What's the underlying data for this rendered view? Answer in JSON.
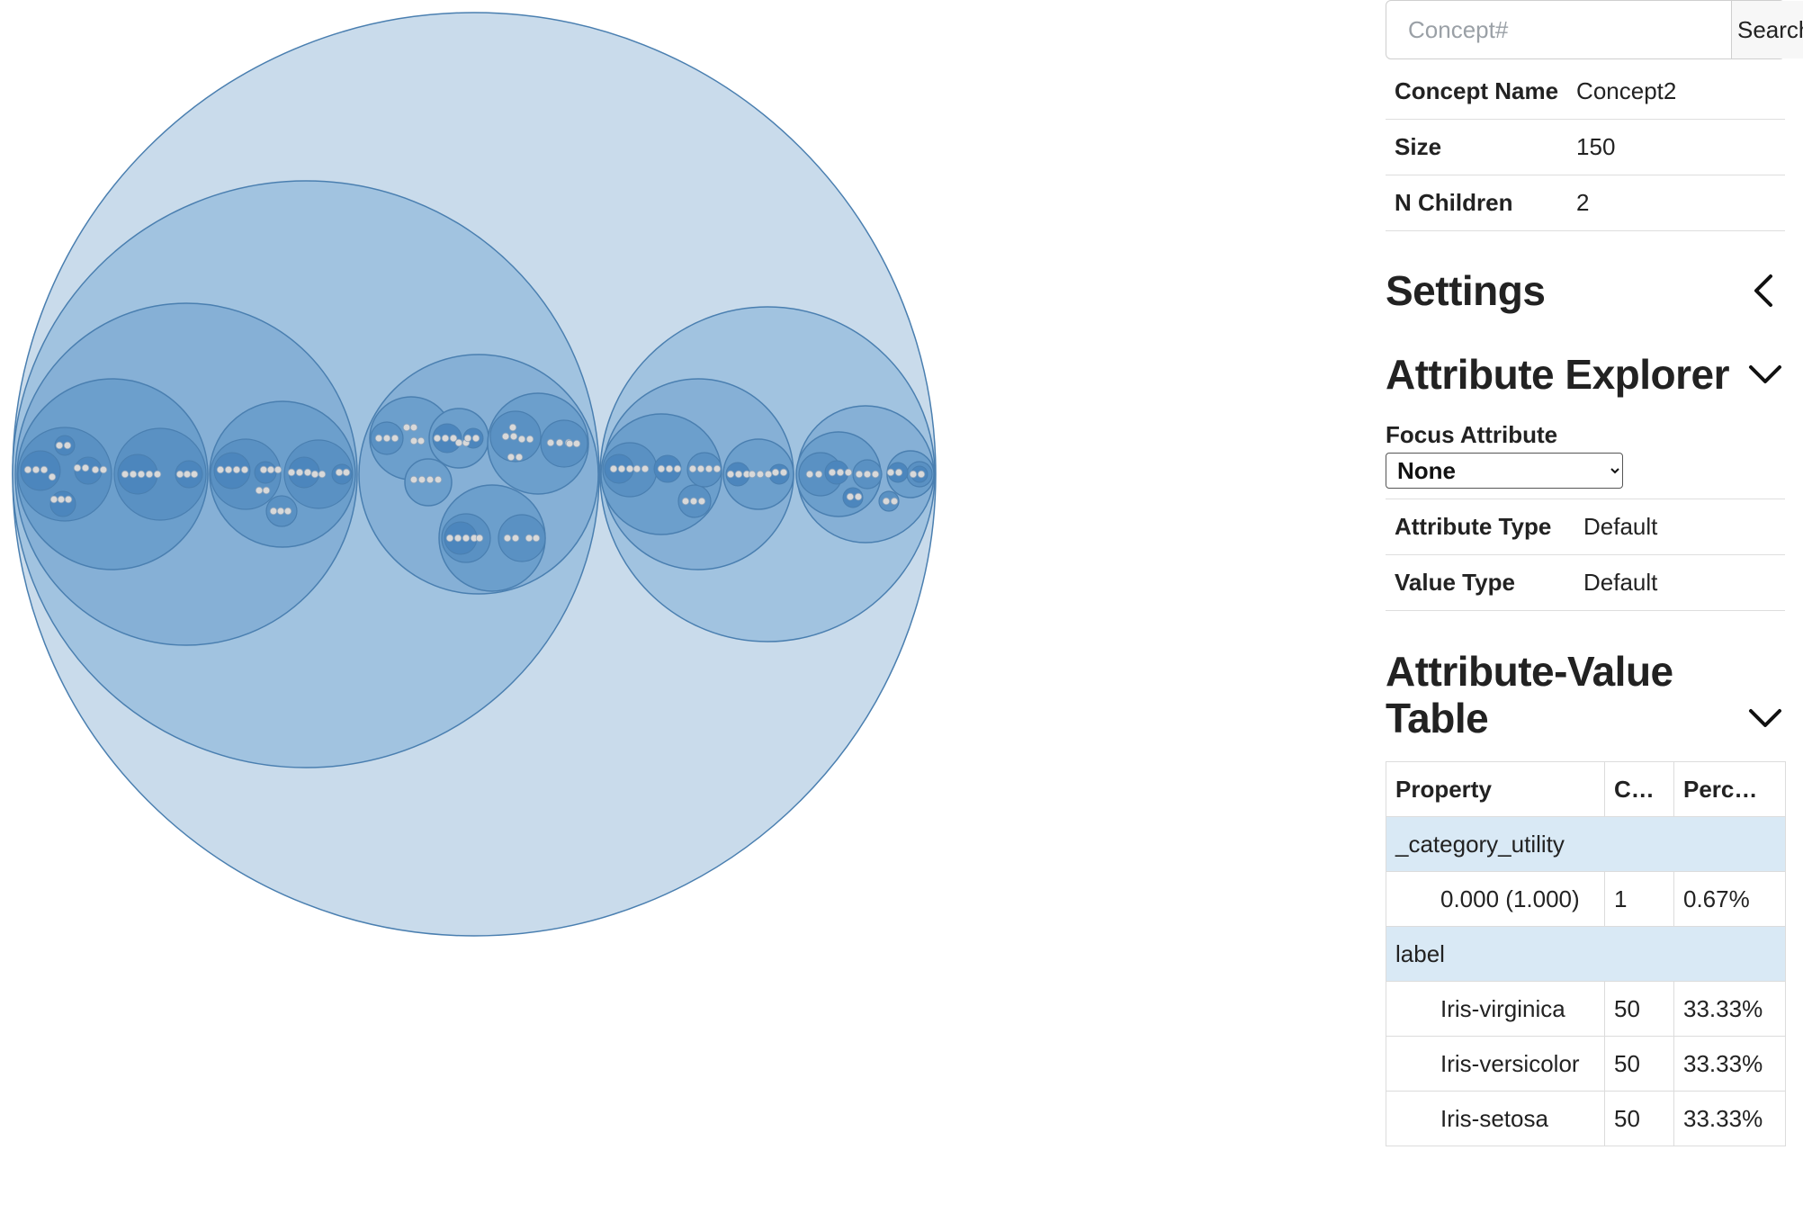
{
  "search": {
    "placeholder": "Concept#",
    "button_label": "Search"
  },
  "concept_info": {
    "rows": [
      {
        "label": "Concept Name",
        "value": "Concept2"
      },
      {
        "label": "Size",
        "value": "150"
      },
      {
        "label": "N Children",
        "value": "2"
      }
    ]
  },
  "settings": {
    "title": "Settings",
    "icon": "chevron-left-icon"
  },
  "attribute_explorer": {
    "title": "Attribute Explorer",
    "icon": "chevron-down-icon",
    "focus_label": "Focus Attribute",
    "focus_value": "None",
    "rows": [
      {
        "label": "Attribute Type",
        "value": "Default"
      },
      {
        "label": "Value Type",
        "value": "Default"
      }
    ]
  },
  "attribute_value_table": {
    "title_line1": "Attribute-Value",
    "title_line2": "Table",
    "icon": "chevron-down-icon",
    "headers": [
      "Property",
      "C…",
      "Perc…"
    ],
    "groups": [
      {
        "name": "_category_utility",
        "rows": [
          {
            "value": "0.000 (1.000)",
            "count": "1",
            "percent": "0.67%"
          }
        ]
      },
      {
        "name": "label",
        "rows": [
          {
            "value": "Iris-virginica",
            "count": "50",
            "percent": "33.33%"
          },
          {
            "value": "Iris-versicolor",
            "count": "50",
            "percent": "33.33%"
          },
          {
            "value": "Iris-setosa",
            "count": "50",
            "percent": "33.33%"
          }
        ]
      }
    ]
  },
  "visualization": {
    "colors": {
      "fill": "#4682b4",
      "stroke": "#2f6ea3",
      "leaf": "#d9d9d9"
    }
  }
}
